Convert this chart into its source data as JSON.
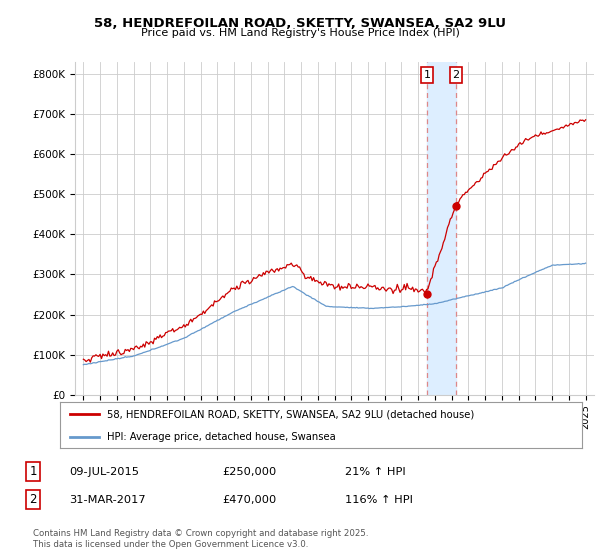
{
  "title1": "58, HENDREFOILAN ROAD, SKETTY, SWANSEA, SA2 9LU",
  "title2": "Price paid vs. HM Land Registry's House Price Index (HPI)",
  "ylabel_ticks": [
    "£0",
    "£100K",
    "£200K",
    "£300K",
    "£400K",
    "£500K",
    "£600K",
    "£700K",
    "£800K"
  ],
  "ytick_values": [
    0,
    100000,
    200000,
    300000,
    400000,
    500000,
    600000,
    700000,
    800000
  ],
  "ylim": [
    0,
    830000
  ],
  "xlim_start": 1994.5,
  "xlim_end": 2025.5,
  "marker1_x": 2015.52,
  "marker1_y": 250000,
  "marker2_x": 2017.25,
  "marker2_y": 470000,
  "shaded_x1": 2015.52,
  "shaded_x2": 2017.25,
  "legend_line1": "58, HENDREFOILAN ROAD, SKETTY, SWANSEA, SA2 9LU (detached house)",
  "legend_line2": "HPI: Average price, detached house, Swansea",
  "table_row1_num": "1",
  "table_row1_date": "09-JUL-2015",
  "table_row1_price": "£250,000",
  "table_row1_hpi": "21% ↑ HPI",
  "table_row2_num": "2",
  "table_row2_date": "31-MAR-2017",
  "table_row2_price": "£470,000",
  "table_row2_hpi": "116% ↑ HPI",
  "footer": "Contains HM Land Registry data © Crown copyright and database right 2025.\nThis data is licensed under the Open Government Licence v3.0.",
  "red_color": "#cc0000",
  "blue_color": "#6699cc",
  "shaded_color": "#ddeeff",
  "grid_color": "#cccccc",
  "vline_color": "#dd8888",
  "bg_color": "#ffffff"
}
